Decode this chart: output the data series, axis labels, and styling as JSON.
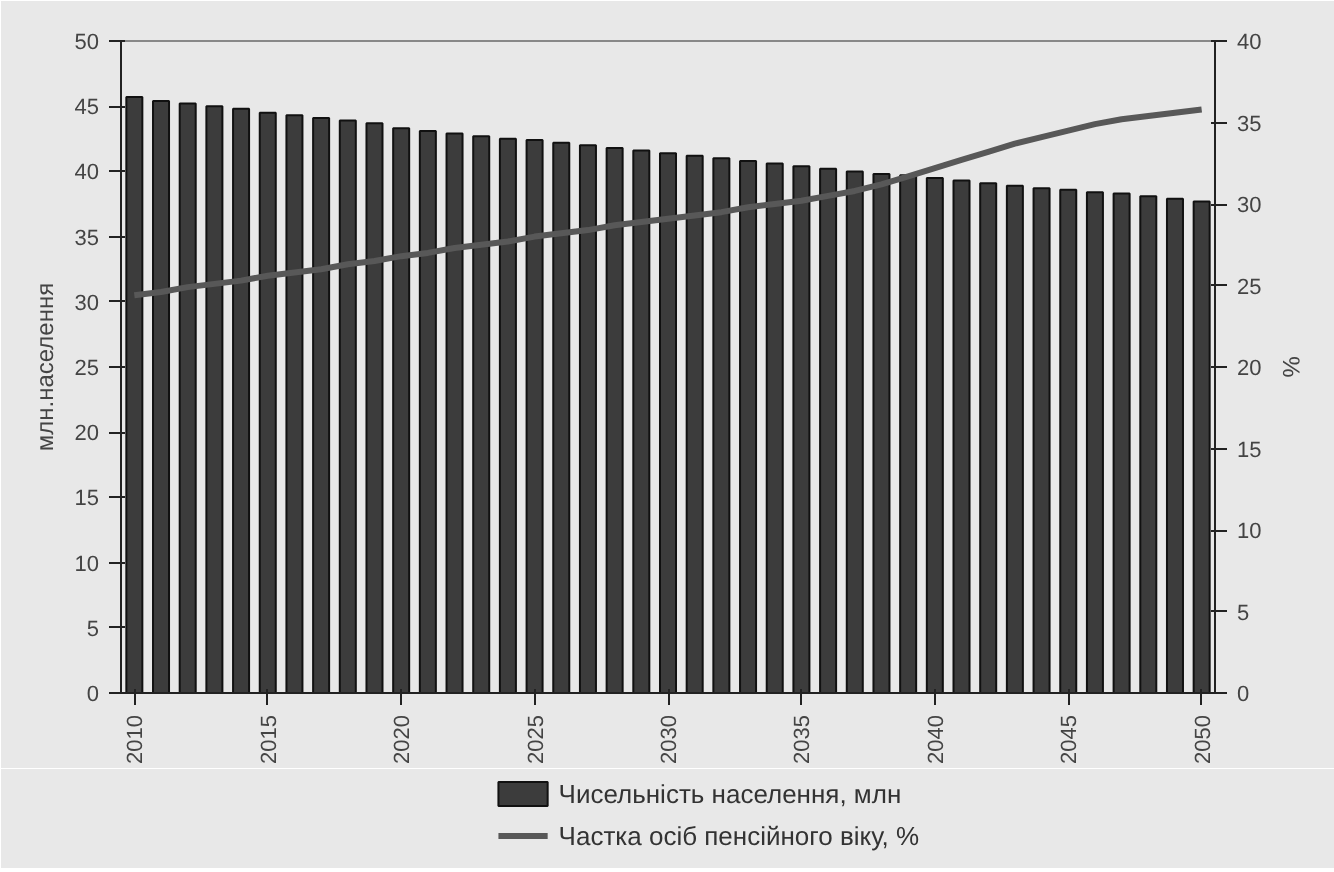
{
  "chart_data": {
    "type": "bar",
    "ylabel": "млн.населення",
    "y2label": "%",
    "x": [
      2010,
      2011,
      2012,
      2013,
      2014,
      2015,
      2016,
      2017,
      2018,
      2019,
      2020,
      2021,
      2022,
      2023,
      2024,
      2025,
      2026,
      2027,
      2028,
      2029,
      2030,
      2031,
      2032,
      2033,
      2034,
      2035,
      2036,
      2037,
      2038,
      2039,
      2040,
      2041,
      2042,
      2043,
      2044,
      2045,
      2046,
      2047,
      2048,
      2049,
      2050
    ],
    "series": [
      {
        "name": "Чисельність населення, млн",
        "color": "#3c3c3c",
        "values": [
          45.7,
          45.4,
          45.2,
          45.0,
          44.8,
          44.5,
          44.3,
          44.1,
          43.9,
          43.7,
          43.3,
          43.1,
          42.9,
          42.7,
          42.5,
          42.4,
          42.2,
          42.0,
          41.8,
          41.6,
          41.4,
          41.2,
          41.0,
          40.8,
          40.6,
          40.4,
          40.2,
          40.0,
          39.8,
          39.7,
          39.5,
          39.3,
          39.1,
          38.9,
          38.7,
          38.6,
          38.4,
          38.3,
          38.1,
          37.9,
          37.7
        ]
      },
      {
        "name": "Частка осіб пенсійного віку, %",
        "type": "line",
        "axis": "y2",
        "color": "#585858",
        "values": [
          24.4,
          24.6,
          24.9,
          25.1,
          25.3,
          25.6,
          25.8,
          26.0,
          26.3,
          26.5,
          26.8,
          27.0,
          27.3,
          27.5,
          27.7,
          28.0,
          28.2,
          28.4,
          28.7,
          28.9,
          29.1,
          29.3,
          29.5,
          29.8,
          30.0,
          30.2,
          30.5,
          30.8,
          31.2,
          31.7,
          32.2,
          32.7,
          33.2,
          33.7,
          34.1,
          34.5,
          34.9,
          35.2,
          35.4,
          35.6,
          35.8
        ]
      }
    ],
    "xlim": [
      2009.5,
      2050.5
    ],
    "xticks": [
      2010,
      2015,
      2020,
      2025,
      2030,
      2035,
      2040,
      2045,
      2050
    ],
    "ylim": [
      0,
      50
    ],
    "yticks": [
      0,
      5,
      10,
      15,
      20,
      25,
      30,
      35,
      40,
      45,
      50
    ],
    "y2lim": [
      0,
      40
    ],
    "y2ticks": [
      0,
      5,
      10,
      15,
      20,
      25,
      30,
      35,
      40
    ],
    "grid": false,
    "legend": "bottom"
  }
}
